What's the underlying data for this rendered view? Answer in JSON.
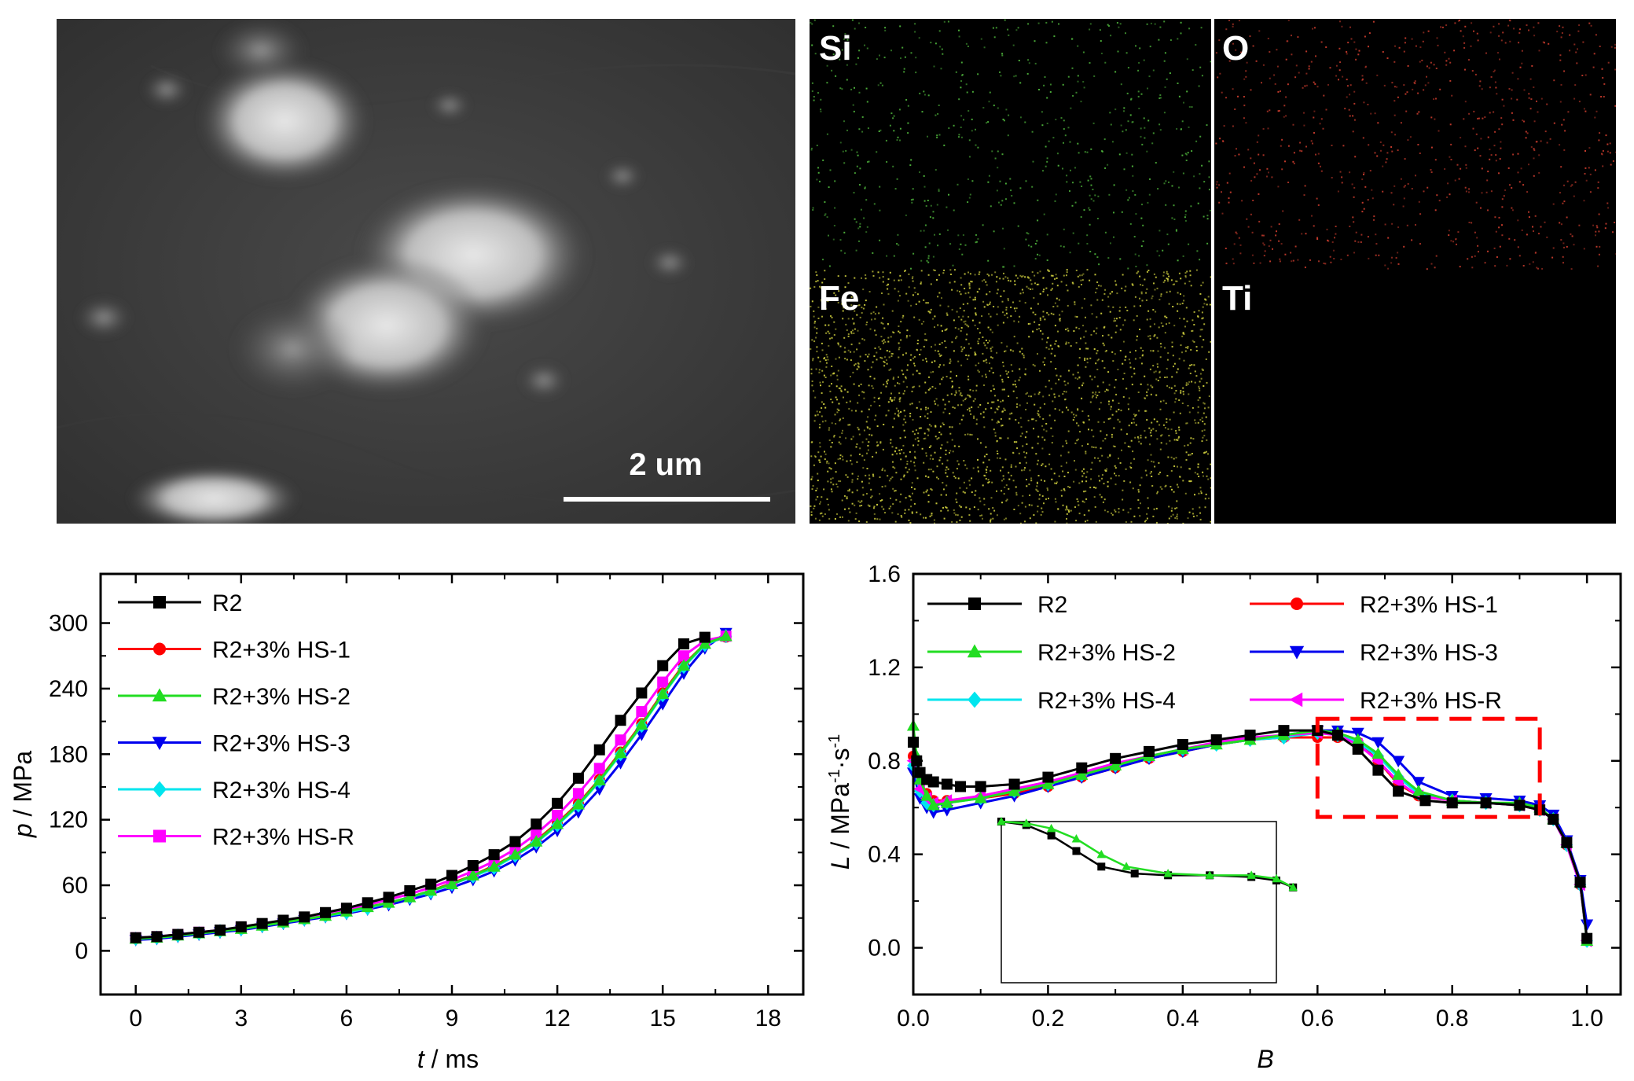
{
  "sem_image": {
    "scale_label": "2 um"
  },
  "element_maps": [
    {
      "element": "Si",
      "color": "#4caf3a"
    },
    {
      "element": "O",
      "color": "#c0392b"
    },
    {
      "element": "Fe",
      "color": "#c8c83c"
    },
    {
      "element": "Ti",
      "color": "#000000"
    }
  ],
  "chart_data": [
    {
      "type": "line",
      "xlabel_var": "t",
      "xlabel_unit": " / ms",
      "ylabel_var": "p",
      "ylabel_unit": " / MPa",
      "xlim": [
        -1,
        19
      ],
      "ylim": [
        -40,
        345
      ],
      "xticks": [
        0,
        3,
        6,
        9,
        12,
        15,
        18
      ],
      "yticks": [
        0,
        60,
        120,
        180,
        240,
        300
      ],
      "legend_position": "top-left",
      "series": [
        {
          "name": "R2",
          "color": "#000000",
          "marker": "square",
          "x": [
            0,
            0.6,
            1.2,
            1.8,
            2.4,
            3.0,
            3.6,
            4.2,
            4.8,
            5.4,
            6.0,
            6.6,
            7.2,
            7.8,
            8.4,
            9.0,
            9.6,
            10.2,
            10.8,
            11.4,
            12.0,
            12.6,
            13.2,
            13.8,
            14.4,
            15.0,
            15.6,
            16.2
          ],
          "values": [
            12,
            13,
            15,
            17,
            19,
            22,
            25,
            28,
            31,
            35,
            39,
            44,
            49,
            55,
            61,
            69,
            78,
            88,
            100,
            116,
            135,
            158,
            184,
            211,
            236,
            261,
            281,
            287
          ]
        },
        {
          "name": "R2+3% HS-1",
          "color": "#ff0000",
          "marker": "circle",
          "x": [
            0,
            0.6,
            1.2,
            1.8,
            2.4,
            3.0,
            3.6,
            4.2,
            4.8,
            5.4,
            6.0,
            6.6,
            7.2,
            7.8,
            8.4,
            9.0,
            9.6,
            10.2,
            10.8,
            11.4,
            12.0,
            12.6,
            13.2,
            13.8,
            14.4,
            15.0,
            15.6,
            16.2,
            16.8
          ],
          "values": [
            11,
            12,
            14,
            16,
            18,
            20,
            23,
            26,
            29,
            32,
            36,
            40,
            44,
            49,
            55,
            62,
            69,
            78,
            88,
            101,
            117,
            135,
            157,
            182,
            208,
            236,
            262,
            281,
            287
          ]
        },
        {
          "name": "R2+3% HS-2",
          "color": "#22dd22",
          "marker": "triangle-up",
          "x": [
            0,
            0.6,
            1.2,
            1.8,
            2.4,
            3.0,
            3.6,
            4.2,
            4.8,
            5.4,
            6.0,
            6.6,
            7.2,
            7.8,
            8.4,
            9.0,
            9.6,
            10.2,
            10.8,
            11.4,
            12.0,
            12.6,
            13.2,
            13.8,
            14.4,
            15.0,
            15.6,
            16.2,
            16.8
          ],
          "values": [
            11,
            12,
            14,
            16,
            18,
            20,
            23,
            26,
            29,
            32,
            36,
            40,
            44,
            49,
            55,
            61,
            69,
            77,
            88,
            100,
            116,
            134,
            156,
            181,
            207,
            235,
            261,
            281,
            288
          ]
        },
        {
          "name": "R2+3% HS-3",
          "color": "#0000ee",
          "marker": "triangle-down",
          "x": [
            0,
            0.6,
            1.2,
            1.8,
            2.4,
            3.0,
            3.6,
            4.2,
            4.8,
            5.4,
            6.0,
            6.6,
            7.2,
            7.8,
            8.4,
            9.0,
            9.6,
            10.2,
            10.8,
            11.4,
            12.0,
            12.6,
            13.2,
            13.8,
            14.4,
            15.0,
            15.6,
            16.2,
            16.8
          ],
          "values": [
            10,
            11,
            13,
            15,
            17,
            19,
            22,
            25,
            28,
            31,
            34,
            38,
            42,
            47,
            52,
            58,
            65,
            73,
            83,
            95,
            110,
            127,
            148,
            172,
            198,
            226,
            254,
            277,
            291
          ]
        },
        {
          "name": "R2+3% HS-4",
          "color": "#00e5ee",
          "marker": "diamond",
          "x": [
            0,
            0.6,
            1.2,
            1.8,
            2.4,
            3.0,
            3.6,
            4.2,
            4.8,
            5.4,
            6.0,
            6.6,
            7.2,
            7.8,
            8.4,
            9.0,
            9.6,
            10.2,
            10.8,
            11.4,
            12.0,
            12.6,
            13.2,
            13.8,
            14.4,
            15.0,
            15.6,
            16.2,
            16.8
          ],
          "values": [
            11,
            12,
            14,
            16,
            18,
            20,
            23,
            26,
            29,
            32,
            35,
            39,
            44,
            49,
            54,
            61,
            68,
            76,
            87,
            99,
            115,
            133,
            155,
            180,
            206,
            234,
            260,
            280,
            288
          ]
        },
        {
          "name": "R2+3% HS-R",
          "color": "#ff00ff",
          "marker": "square",
          "x": [
            0,
            0.6,
            1.2,
            1.8,
            2.4,
            3.0,
            3.6,
            4.2,
            4.8,
            5.4,
            6.0,
            6.6,
            7.2,
            7.8,
            8.4,
            9.0,
            9.6,
            10.2,
            10.8,
            11.4,
            12.0,
            12.6,
            13.2,
            13.8,
            14.4,
            15.0,
            15.6,
            16.2,
            16.8
          ],
          "values": [
            12,
            13,
            15,
            17,
            19,
            21,
            24,
            27,
            30,
            34,
            38,
            42,
            47,
            52,
            58,
            65,
            73,
            82,
            93,
            107,
            124,
            144,
            167,
            193,
            219,
            246,
            270,
            284,
            288
          ]
        }
      ]
    },
    {
      "type": "line",
      "xlabel_var": "B",
      "ylabel_var": "L",
      "ylabel_unit_parts": [
        "MPa",
        "-1",
        "s",
        "-1"
      ],
      "xlim": [
        0.0,
        1.05
      ],
      "ylim": [
        -0.2,
        1.6
      ],
      "xticks": [
        0.0,
        0.2,
        0.4,
        0.6,
        0.8,
        1.0
      ],
      "yticks": [
        0.0,
        0.4,
        0.8,
        1.2,
        1.6
      ],
      "legend_position": "top",
      "highlight_box": {
        "x": [
          0.6,
          0.93
        ],
        "y": [
          0.56,
          0.98
        ],
        "color": "#ff0000"
      },
      "inset": {
        "series": [
          "R2",
          "R2+3% HS-2"
        ]
      },
      "series": [
        {
          "name": "R2",
          "color": "#000000",
          "marker": "square",
          "x": [
            0.0,
            0.005,
            0.01,
            0.02,
            0.03,
            0.05,
            0.07,
            0.1,
            0.15,
            0.2,
            0.25,
            0.3,
            0.35,
            0.4,
            0.45,
            0.5,
            0.55,
            0.6,
            0.63,
            0.66,
            0.69,
            0.72,
            0.76,
            0.8,
            0.85,
            0.9,
            0.93,
            0.95,
            0.97,
            0.99,
            1.0
          ],
          "values": [
            0.88,
            0.8,
            0.75,
            0.72,
            0.71,
            0.7,
            0.69,
            0.69,
            0.7,
            0.73,
            0.77,
            0.81,
            0.84,
            0.87,
            0.89,
            0.91,
            0.93,
            0.93,
            0.91,
            0.85,
            0.76,
            0.67,
            0.63,
            0.62,
            0.62,
            0.61,
            0.59,
            0.55,
            0.45,
            0.28,
            0.04
          ]
        },
        {
          "name": "R2+3% HS-1",
          "color": "#ff0000",
          "marker": "circle",
          "x": [
            0.0,
            0.01,
            0.02,
            0.03,
            0.05,
            0.1,
            0.15,
            0.2,
            0.25,
            0.3,
            0.35,
            0.4,
            0.45,
            0.5,
            0.55,
            0.6,
            0.63,
            0.66,
            0.69,
            0.72,
            0.75,
            0.8,
            0.85,
            0.9,
            0.93,
            0.95,
            0.97,
            0.99,
            1.0
          ],
          "values": [
            0.82,
            0.71,
            0.66,
            0.63,
            0.63,
            0.64,
            0.66,
            0.69,
            0.73,
            0.77,
            0.81,
            0.84,
            0.87,
            0.89,
            0.9,
            0.9,
            0.9,
            0.88,
            0.8,
            0.7,
            0.65,
            0.63,
            0.62,
            0.61,
            0.59,
            0.55,
            0.44,
            0.27,
            0.03
          ]
        },
        {
          "name": "R2+3% HS-2",
          "color": "#22dd22",
          "marker": "triangle-up",
          "x": [
            0.0,
            0.005,
            0.01,
            0.02,
            0.03,
            0.05,
            0.1,
            0.15,
            0.2,
            0.25,
            0.3,
            0.35,
            0.4,
            0.45,
            0.5,
            0.55,
            0.6,
            0.63,
            0.66,
            0.69,
            0.72,
            0.75,
            0.8,
            0.85,
            0.9,
            0.93,
            0.95,
            0.97,
            0.99,
            1.0
          ],
          "values": [
            0.95,
            0.82,
            0.72,
            0.65,
            0.61,
            0.62,
            0.64,
            0.67,
            0.7,
            0.74,
            0.78,
            0.82,
            0.85,
            0.87,
            0.89,
            0.91,
            0.93,
            0.92,
            0.89,
            0.83,
            0.74,
            0.67,
            0.63,
            0.62,
            0.62,
            0.6,
            0.55,
            0.45,
            0.28,
            0.03
          ]
        },
        {
          "name": "R2+3% HS-3",
          "color": "#0000ee",
          "marker": "triangle-down",
          "x": [
            0.0,
            0.01,
            0.02,
            0.03,
            0.05,
            0.1,
            0.15,
            0.2,
            0.25,
            0.3,
            0.35,
            0.4,
            0.45,
            0.5,
            0.55,
            0.6,
            0.63,
            0.66,
            0.69,
            0.72,
            0.75,
            0.8,
            0.85,
            0.9,
            0.93,
            0.95,
            0.97,
            0.99,
            1.0
          ],
          "values": [
            0.75,
            0.64,
            0.6,
            0.58,
            0.59,
            0.62,
            0.65,
            0.69,
            0.73,
            0.77,
            0.81,
            0.84,
            0.87,
            0.89,
            0.91,
            0.93,
            0.93,
            0.92,
            0.88,
            0.8,
            0.71,
            0.65,
            0.64,
            0.63,
            0.61,
            0.57,
            0.46,
            0.29,
            0.1
          ]
        },
        {
          "name": "R2+3% HS-4",
          "color": "#00e5ee",
          "marker": "diamond",
          "x": [
            0.0,
            0.01,
            0.02,
            0.03,
            0.05,
            0.1,
            0.15,
            0.2,
            0.25,
            0.3,
            0.35,
            0.4,
            0.45,
            0.5,
            0.55,
            0.6,
            0.63,
            0.66,
            0.69,
            0.72,
            0.75,
            0.8,
            0.85,
            0.9,
            0.93,
            0.95,
            0.97,
            0.99,
            1.0
          ],
          "values": [
            0.78,
            0.67,
            0.62,
            0.61,
            0.62,
            0.64,
            0.67,
            0.7,
            0.74,
            0.78,
            0.82,
            0.85,
            0.87,
            0.89,
            0.9,
            0.92,
            0.91,
            0.88,
            0.82,
            0.73,
            0.66,
            0.63,
            0.62,
            0.61,
            0.59,
            0.55,
            0.44,
            0.27,
            0.03
          ]
        },
        {
          "name": "R2+3% HS-R",
          "color": "#ff00ff",
          "marker": "triangle-left",
          "x": [
            0.0,
            0.01,
            0.02,
            0.03,
            0.05,
            0.1,
            0.15,
            0.2,
            0.25,
            0.3,
            0.35,
            0.4,
            0.45,
            0.5,
            0.55,
            0.6,
            0.63,
            0.66,
            0.69,
            0.72,
            0.75,
            0.8,
            0.85,
            0.9,
            0.93,
            0.95,
            0.97,
            0.99,
            1.0
          ],
          "values": [
            0.8,
            0.68,
            0.64,
            0.62,
            0.63,
            0.65,
            0.68,
            0.71,
            0.75,
            0.79,
            0.82,
            0.85,
            0.88,
            0.9,
            0.91,
            0.92,
            0.91,
            0.87,
            0.8,
            0.71,
            0.65,
            0.63,
            0.62,
            0.61,
            0.59,
            0.55,
            0.44,
            0.27,
            0.03
          ]
        }
      ]
    }
  ]
}
